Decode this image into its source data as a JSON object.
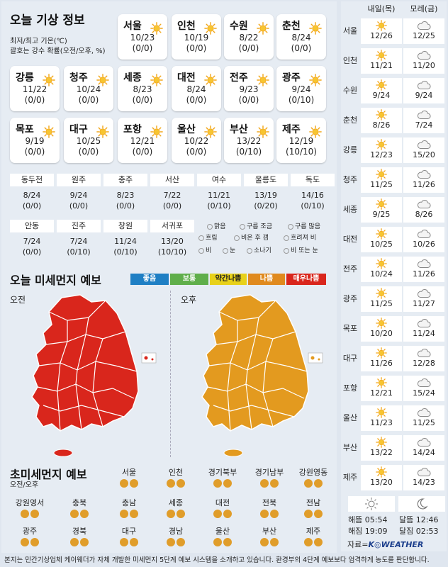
{
  "today": {
    "title": "오늘 기상 정보",
    "legend_line1": "최저/최고 기온(℃)",
    "legend_line2": "괄호는 강수 확률(오전/오후, %)",
    "cities": [
      {
        "name": "서울",
        "temp": "10/23",
        "rain": "(0/0)"
      },
      {
        "name": "인천",
        "temp": "10/19",
        "rain": "(0/0)"
      },
      {
        "name": "수원",
        "temp": "8/22",
        "rain": "(0/0)"
      },
      {
        "name": "춘천",
        "temp": "8/24",
        "rain": "(0/0)"
      },
      {
        "name": "강릉",
        "temp": "11/22",
        "rain": "(0/0)"
      },
      {
        "name": "청주",
        "temp": "10/24",
        "rain": "(0/0)"
      },
      {
        "name": "세종",
        "temp": "8/23",
        "rain": "(0/0)"
      },
      {
        "name": "대전",
        "temp": "8/24",
        "rain": "(0/0)"
      },
      {
        "name": "전주",
        "temp": "9/23",
        "rain": "(0/0)"
      },
      {
        "name": "광주",
        "temp": "9/24",
        "rain": "(0/10)"
      },
      {
        "name": "목포",
        "temp": "9/19",
        "rain": "(0/0)"
      },
      {
        "name": "대구",
        "temp": "10/25",
        "rain": "(0/0)"
      },
      {
        "name": "포항",
        "temp": "12/21",
        "rain": "(0/0)"
      },
      {
        "name": "울산",
        "temp": "10/22",
        "rain": "(0/0)"
      },
      {
        "name": "부산",
        "temp": "13/22",
        "rain": "(0/10)"
      },
      {
        "name": "제주",
        "temp": "12/19",
        "rain": "(10/10)"
      }
    ],
    "small_cities": [
      {
        "name": "동두천",
        "temp": "8/24",
        "rain": "(0/0)"
      },
      {
        "name": "원주",
        "temp": "9/24",
        "rain": "(0/0)"
      },
      {
        "name": "충주",
        "temp": "8/23",
        "rain": "(0/0)"
      },
      {
        "name": "서산",
        "temp": "7/22",
        "rain": "(0/0)"
      },
      {
        "name": "여수",
        "temp": "11/21",
        "rain": "(0/10)"
      },
      {
        "name": "울릉도",
        "temp": "13/19",
        "rain": "(0/20)"
      },
      {
        "name": "독도",
        "temp": "14/16",
        "rain": "(0/10)"
      },
      {
        "name": "안동",
        "temp": "7/24",
        "rain": "(0/0)"
      },
      {
        "name": "진주",
        "temp": "7/24",
        "rain": "(0/10)"
      },
      {
        "name": "창원",
        "temp": "11/24",
        "rain": "(0/10)"
      },
      {
        "name": "서귀포",
        "temp": "13/20",
        "rain": "(10/10)"
      }
    ],
    "weather_legend": [
      "맑음",
      "구름 조금",
      "구름 많음",
      "흐림",
      "비온 후 갬",
      "흐려져 비",
      "비",
      "눈",
      "소나기",
      "비 또는 눈"
    ]
  },
  "dust": {
    "title": "오늘 미세먼지 예보",
    "levels": [
      {
        "label": "좋음",
        "color": "#1f7fc4"
      },
      {
        "label": "보통",
        "color": "#5fae4a"
      },
      {
        "label": "약간나쁨",
        "color": "#e8d11a"
      },
      {
        "label": "나쁨",
        "color": "#e08a1e"
      },
      {
        "label": "매우나쁨",
        "color": "#d9261c"
      }
    ],
    "am_label": "오전",
    "pm_label": "오후",
    "am_color": "#d9261c",
    "pm_color": "#e39a1f"
  },
  "ultrafine": {
    "title": "초미세먼지 예보",
    "subtitle": "오전/오후",
    "cities": [
      "서울",
      "인천",
      "경기북부",
      "경기남부",
      "강원영동",
      "강원영서",
      "충북",
      "충남",
      "세종",
      "대전",
      "전북",
      "전남",
      "광주",
      "경북",
      "대구",
      "경남",
      "울산",
      "부산",
      "제주"
    ]
  },
  "forecast": {
    "headers": [
      "내일(목)",
      "모레(금)"
    ],
    "rows": [
      {
        "city": "서울",
        "d1": "12/26",
        "d1_icon": "sun",
        "d2": "12/25",
        "d2_icon": "cloud"
      },
      {
        "city": "인천",
        "d1": "11/21",
        "d1_icon": "sun",
        "d2": "11/20",
        "d2_icon": "cloud"
      },
      {
        "city": "수원",
        "d1": "9/24",
        "d1_icon": "sun",
        "d2": "9/24",
        "d2_icon": "cloud"
      },
      {
        "city": "춘천",
        "d1": "8/26",
        "d1_icon": "sun",
        "d2": "7/24",
        "d2_icon": "cloud"
      },
      {
        "city": "강릉",
        "d1": "12/23",
        "d1_icon": "sun",
        "d2": "15/20",
        "d2_icon": "cloud"
      },
      {
        "city": "청주",
        "d1": "11/25",
        "d1_icon": "sun",
        "d2": "11/26",
        "d2_icon": "cloud"
      },
      {
        "city": "세종",
        "d1": "9/25",
        "d1_icon": "sun",
        "d2": "8/26",
        "d2_icon": "cloud"
      },
      {
        "city": "대전",
        "d1": "10/25",
        "d1_icon": "sun",
        "d2": "10/26",
        "d2_icon": "cloud"
      },
      {
        "city": "전주",
        "d1": "10/24",
        "d1_icon": "sun",
        "d2": "11/26",
        "d2_icon": "cloud"
      },
      {
        "city": "광주",
        "d1": "11/25",
        "d1_icon": "sun",
        "d2": "11/27",
        "d2_icon": "cloud"
      },
      {
        "city": "목포",
        "d1": "10/20",
        "d1_icon": "sun",
        "d2": "11/24",
        "d2_icon": "cloud"
      },
      {
        "city": "대구",
        "d1": "11/26",
        "d1_icon": "sun",
        "d2": "12/28",
        "d2_icon": "cloud"
      },
      {
        "city": "포항",
        "d1": "12/21",
        "d1_icon": "sun",
        "d2": "15/24",
        "d2_icon": "cloud"
      },
      {
        "city": "울산",
        "d1": "11/23",
        "d1_icon": "sun",
        "d2": "11/25",
        "d2_icon": "cloud"
      },
      {
        "city": "부산",
        "d1": "13/22",
        "d1_icon": "sun",
        "d2": "14/24",
        "d2_icon": "cloud"
      },
      {
        "city": "제주",
        "d1": "13/20",
        "d1_icon": "sun",
        "d2": "14/23",
        "d2_icon": "cloud"
      }
    ],
    "sunrise": "해뜸 05:54",
    "sunset": "해짐 19:09",
    "moonrise": "달뜸 12:46",
    "moonset": "달짐 02:53",
    "source_prefix": "자료=",
    "source_brand": "K◎WEATHER"
  },
  "footer": "본지는 민간기상업체 케이웨더가 자체 개발한 미세먼지 5단계 예보 시스템을 소개하고 있습니다. 환경부의 4단계 예보보다 엄격하게 농도를 판단합니다."
}
